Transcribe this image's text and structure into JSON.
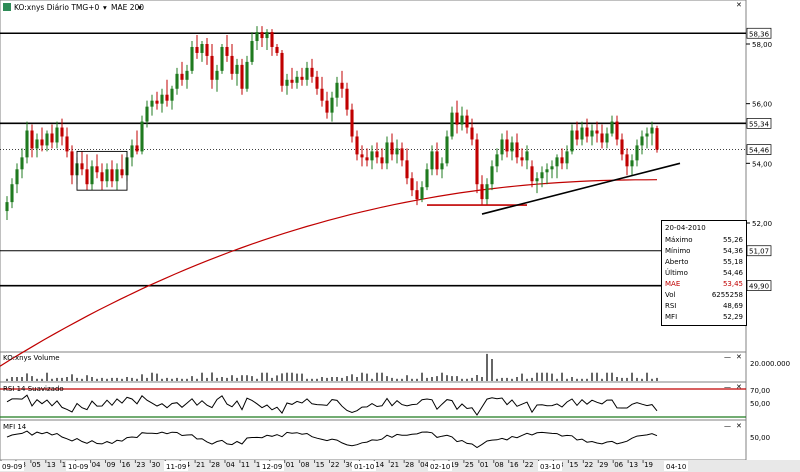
{
  "header": {
    "icon": "chart-icon",
    "symbol_label": "KO:xnys Diário TMG+0",
    "mae_label": "MAE 200",
    "mae_color": "#c00000"
  },
  "info_box": {
    "date": "20-04-2010",
    "rows": [
      {
        "key": "Máximo",
        "value": "55,26"
      },
      {
        "key": "Mínimo",
        "value": "54,36"
      },
      {
        "key": "Aberto",
        "value": "55,18"
      },
      {
        "key": "Último",
        "value": "54,46"
      },
      {
        "key": "MAE",
        "value": "53,45"
      },
      {
        "key": "Vol",
        "value": "6255258"
      },
      {
        "key": "RSI",
        "value": "48,69"
      },
      {
        "key": "MFI",
        "value": "52,29"
      }
    ]
  },
  "panels": {
    "volume_label": "KO:xnys Volume",
    "volume_tick": "20.000.000",
    "rsi_label": "RSI 14 Suavizado",
    "rsi_ticks": [
      "70,00",
      "50,00"
    ],
    "mfi_label": "MFI 14",
    "mfi_ticks": [
      "50,00"
    ]
  },
  "chart_data": {
    "type": "candlestick",
    "title": "KO:xnys Diário TMG+0",
    "ylim": [
      51.4,
      58.65
    ],
    "y_ticks": [
      "58,00",
      "56,00",
      "54,00",
      "52,00"
    ],
    "price_labels": [
      "58,36",
      "55,34",
      "54,46",
      "51,07",
      "49,90"
    ],
    "horizontal_levels": [
      58.36,
      55.34,
      51.07,
      49.9
    ],
    "last_price": 54.46,
    "x_labels": [
      "09-09",
      "10-09",
      "11-09",
      "12-09",
      "01-10",
      "02-10",
      "03-10",
      "04-10"
    ],
    "x_day_ticks": [
      "21",
      "28",
      "05",
      "13",
      "19",
      "27",
      "04",
      "09",
      "16",
      "23",
      "30",
      "07",
      "14",
      "21",
      "28",
      "04",
      "11",
      "18",
      "25",
      "01",
      "08",
      "15",
      "22",
      "30",
      "07",
      "14",
      "21",
      "28",
      "04",
      "11",
      "19",
      "25",
      "01",
      "08",
      "16",
      "22",
      "01",
      "08",
      "15",
      "22",
      "29",
      "06",
      "13",
      "19"
    ],
    "candles": [
      {
        "o": 52.4,
        "h": 52.9,
        "l": 52.1,
        "c": 52.7
      },
      {
        "o": 52.7,
        "h": 53.5,
        "l": 52.5,
        "c": 53.3
      },
      {
        "o": 53.3,
        "h": 54.0,
        "l": 53.0,
        "c": 53.8
      },
      {
        "o": 53.8,
        "h": 54.5,
        "l": 53.5,
        "c": 54.2
      },
      {
        "o": 54.2,
        "h": 55.4,
        "l": 54.0,
        "c": 55.1
      },
      {
        "o": 55.1,
        "h": 55.3,
        "l": 54.2,
        "c": 54.5
      },
      {
        "o": 54.5,
        "h": 55.0,
        "l": 54.2,
        "c": 54.8
      },
      {
        "o": 54.8,
        "h": 55.2,
        "l": 54.4,
        "c": 54.6
      },
      {
        "o": 54.6,
        "h": 55.1,
        "l": 54.4,
        "c": 55.0
      },
      {
        "o": 55.0,
        "h": 55.3,
        "l": 54.5,
        "c": 54.7
      },
      {
        "o": 54.7,
        "h": 55.4,
        "l": 54.5,
        "c": 55.2
      },
      {
        "o": 55.2,
        "h": 55.5,
        "l": 54.6,
        "c": 54.9
      },
      {
        "o": 54.9,
        "h": 55.2,
        "l": 54.2,
        "c": 54.4
      },
      {
        "o": 54.4,
        "h": 54.6,
        "l": 53.3,
        "c": 53.6
      },
      {
        "o": 53.6,
        "h": 54.2,
        "l": 53.3,
        "c": 54.0
      },
      {
        "o": 54.0,
        "h": 54.4,
        "l": 53.6,
        "c": 53.8
      },
      {
        "o": 53.8,
        "h": 54.3,
        "l": 53.1,
        "c": 53.3
      },
      {
        "o": 53.3,
        "h": 54.1,
        "l": 53.1,
        "c": 53.9
      },
      {
        "o": 53.9,
        "h": 54.3,
        "l": 53.5,
        "c": 53.7
      },
      {
        "o": 53.7,
        "h": 54.0,
        "l": 53.1,
        "c": 53.4
      },
      {
        "o": 53.4,
        "h": 54.0,
        "l": 53.2,
        "c": 53.8
      },
      {
        "o": 53.8,
        "h": 54.1,
        "l": 53.2,
        "c": 53.4
      },
      {
        "o": 53.4,
        "h": 54.0,
        "l": 53.1,
        "c": 53.8
      },
      {
        "o": 53.8,
        "h": 54.3,
        "l": 53.5,
        "c": 53.6
      },
      {
        "o": 53.6,
        "h": 54.4,
        "l": 53.4,
        "c": 54.2
      },
      {
        "o": 54.2,
        "h": 54.8,
        "l": 53.9,
        "c": 54.6
      },
      {
        "o": 54.6,
        "h": 55.1,
        "l": 54.3,
        "c": 54.4
      },
      {
        "o": 54.4,
        "h": 55.6,
        "l": 54.3,
        "c": 55.4
      },
      {
        "o": 55.4,
        "h": 56.1,
        "l": 55.2,
        "c": 55.9
      },
      {
        "o": 55.9,
        "h": 56.3,
        "l": 55.6,
        "c": 56.1
      },
      {
        "o": 56.1,
        "h": 56.4,
        "l": 55.8,
        "c": 56.0
      },
      {
        "o": 56.0,
        "h": 56.5,
        "l": 55.7,
        "c": 56.3
      },
      {
        "o": 56.3,
        "h": 56.8,
        "l": 55.9,
        "c": 56.1
      },
      {
        "o": 56.1,
        "h": 56.6,
        "l": 55.8,
        "c": 56.5
      },
      {
        "o": 56.5,
        "h": 57.2,
        "l": 56.3,
        "c": 57.0
      },
      {
        "o": 57.0,
        "h": 57.4,
        "l": 56.6,
        "c": 56.8
      },
      {
        "o": 56.8,
        "h": 57.3,
        "l": 56.5,
        "c": 57.1
      },
      {
        "o": 57.1,
        "h": 58.1,
        "l": 57.0,
        "c": 57.9
      },
      {
        "o": 57.9,
        "h": 58.3,
        "l": 57.5,
        "c": 57.7
      },
      {
        "o": 57.7,
        "h": 58.1,
        "l": 57.4,
        "c": 58.0
      },
      {
        "o": 58.0,
        "h": 58.2,
        "l": 57.3,
        "c": 57.6
      },
      {
        "o": 57.6,
        "h": 58.0,
        "l": 56.5,
        "c": 56.8
      },
      {
        "o": 56.8,
        "h": 57.3,
        "l": 56.4,
        "c": 57.1
      },
      {
        "o": 57.1,
        "h": 58.0,
        "l": 57.0,
        "c": 57.9
      },
      {
        "o": 57.9,
        "h": 58.3,
        "l": 57.4,
        "c": 57.6
      },
      {
        "o": 57.6,
        "h": 58.0,
        "l": 56.8,
        "c": 57.0
      },
      {
        "o": 57.0,
        "h": 57.5,
        "l": 56.6,
        "c": 57.3
      },
      {
        "o": 57.3,
        "h": 57.5,
        "l": 56.3,
        "c": 56.5
      },
      {
        "o": 56.5,
        "h": 57.6,
        "l": 56.4,
        "c": 57.4
      },
      {
        "o": 57.4,
        "h": 58.4,
        "l": 57.3,
        "c": 58.1
      },
      {
        "o": 58.1,
        "h": 58.6,
        "l": 57.8,
        "c": 58.4
      },
      {
        "o": 58.4,
        "h": 58.6,
        "l": 57.9,
        "c": 58.2
      },
      {
        "o": 58.2,
        "h": 58.5,
        "l": 57.8,
        "c": 58.4
      },
      {
        "o": 58.4,
        "h": 58.5,
        "l": 57.6,
        "c": 57.9
      },
      {
        "o": 57.9,
        "h": 58.0,
        "l": 57.6,
        "c": 57.7
      },
      {
        "o": 57.7,
        "h": 57.8,
        "l": 56.4,
        "c": 56.6
      },
      {
        "o": 56.6,
        "h": 57.0,
        "l": 56.3,
        "c": 56.8
      },
      {
        "o": 56.8,
        "h": 57.2,
        "l": 56.5,
        "c": 56.7
      },
      {
        "o": 56.7,
        "h": 57.1,
        "l": 56.5,
        "c": 56.9
      },
      {
        "o": 56.9,
        "h": 57.2,
        "l": 56.6,
        "c": 56.8
      },
      {
        "o": 56.8,
        "h": 57.4,
        "l": 56.6,
        "c": 57.2
      },
      {
        "o": 57.2,
        "h": 57.5,
        "l": 56.7,
        "c": 56.9
      },
      {
        "o": 56.9,
        "h": 57.1,
        "l": 56.3,
        "c": 56.5
      },
      {
        "o": 56.5,
        "h": 56.9,
        "l": 55.9,
        "c": 56.1
      },
      {
        "o": 56.1,
        "h": 56.4,
        "l": 55.5,
        "c": 55.7
      },
      {
        "o": 55.7,
        "h": 56.4,
        "l": 55.4,
        "c": 56.2
      },
      {
        "o": 56.2,
        "h": 56.9,
        "l": 55.9,
        "c": 56.7
      },
      {
        "o": 56.7,
        "h": 57.1,
        "l": 56.2,
        "c": 56.5
      },
      {
        "o": 56.5,
        "h": 56.7,
        "l": 55.6,
        "c": 55.8
      },
      {
        "o": 55.8,
        "h": 56.0,
        "l": 54.7,
        "c": 54.9
      },
      {
        "o": 54.9,
        "h": 55.1,
        "l": 54.1,
        "c": 54.3
      },
      {
        "o": 54.3,
        "h": 54.6,
        "l": 53.9,
        "c": 54.2
      },
      {
        "o": 54.2,
        "h": 54.5,
        "l": 53.9,
        "c": 54.1
      },
      {
        "o": 54.1,
        "h": 54.6,
        "l": 53.8,
        "c": 54.4
      },
      {
        "o": 54.4,
        "h": 54.7,
        "l": 54.0,
        "c": 54.2
      },
      {
        "o": 54.2,
        "h": 54.5,
        "l": 53.8,
        "c": 54.0
      },
      {
        "o": 54.0,
        "h": 54.9,
        "l": 53.8,
        "c": 54.7
      },
      {
        "o": 54.7,
        "h": 55.0,
        "l": 54.1,
        "c": 54.3
      },
      {
        "o": 54.3,
        "h": 54.8,
        "l": 54.0,
        "c": 54.5
      },
      {
        "o": 54.5,
        "h": 54.7,
        "l": 53.9,
        "c": 54.1
      },
      {
        "o": 54.1,
        "h": 54.5,
        "l": 53.3,
        "c": 53.5
      },
      {
        "o": 53.5,
        "h": 53.7,
        "l": 52.9,
        "c": 53.1
      },
      {
        "o": 53.1,
        "h": 53.4,
        "l": 52.6,
        "c": 52.8
      },
      {
        "o": 52.8,
        "h": 53.4,
        "l": 52.7,
        "c": 53.2
      },
      {
        "o": 53.2,
        "h": 54.0,
        "l": 53.1,
        "c": 53.8
      },
      {
        "o": 53.8,
        "h": 54.6,
        "l": 53.6,
        "c": 54.4
      },
      {
        "o": 54.4,
        "h": 54.7,
        "l": 53.6,
        "c": 53.8
      },
      {
        "o": 53.8,
        "h": 54.2,
        "l": 53.5,
        "c": 54.0
      },
      {
        "o": 54.0,
        "h": 55.1,
        "l": 53.9,
        "c": 54.9
      },
      {
        "o": 54.9,
        "h": 55.9,
        "l": 54.8,
        "c": 55.7
      },
      {
        "o": 55.7,
        "h": 56.1,
        "l": 55.0,
        "c": 55.3
      },
      {
        "o": 55.3,
        "h": 55.9,
        "l": 55.1,
        "c": 55.6
      },
      {
        "o": 55.6,
        "h": 55.8,
        "l": 55.0,
        "c": 55.2
      },
      {
        "o": 55.2,
        "h": 55.5,
        "l": 54.6,
        "c": 54.8
      },
      {
        "o": 54.8,
        "h": 55.0,
        "l": 53.0,
        "c": 53.3
      },
      {
        "o": 53.3,
        "h": 53.6,
        "l": 52.6,
        "c": 52.8
      },
      {
        "o": 52.8,
        "h": 53.5,
        "l": 52.6,
        "c": 53.3
      },
      {
        "o": 53.3,
        "h": 54.1,
        "l": 53.1,
        "c": 53.9
      },
      {
        "o": 53.9,
        "h": 54.5,
        "l": 53.7,
        "c": 54.3
      },
      {
        "o": 54.3,
        "h": 55.0,
        "l": 54.1,
        "c": 54.8
      },
      {
        "o": 54.8,
        "h": 55.1,
        "l": 54.2,
        "c": 54.4
      },
      {
        "o": 54.4,
        "h": 54.9,
        "l": 54.1,
        "c": 54.7
      },
      {
        "o": 54.7,
        "h": 55.0,
        "l": 54.0,
        "c": 54.2
      },
      {
        "o": 54.2,
        "h": 54.5,
        "l": 53.9,
        "c": 54.1
      },
      {
        "o": 54.1,
        "h": 54.6,
        "l": 53.8,
        "c": 54.4
      },
      {
        "o": 53.9,
        "h": 54.1,
        "l": 53.2,
        "c": 53.4
      },
      {
        "o": 53.4,
        "h": 53.7,
        "l": 53.0,
        "c": 53.5
      },
      {
        "o": 53.5,
        "h": 53.9,
        "l": 53.2,
        "c": 53.7
      },
      {
        "o": 53.7,
        "h": 54.0,
        "l": 53.3,
        "c": 53.8
      },
      {
        "o": 53.8,
        "h": 54.1,
        "l": 53.5,
        "c": 53.9
      },
      {
        "o": 53.9,
        "h": 54.3,
        "l": 53.5,
        "c": 54.2
      },
      {
        "o": 54.2,
        "h": 54.5,
        "l": 53.8,
        "c": 54.0
      },
      {
        "o": 54.0,
        "h": 54.6,
        "l": 53.8,
        "c": 54.4
      },
      {
        "o": 54.4,
        "h": 55.3,
        "l": 54.3,
        "c": 55.1
      },
      {
        "o": 55.1,
        "h": 55.4,
        "l": 54.6,
        "c": 54.8
      },
      {
        "o": 54.8,
        "h": 55.4,
        "l": 54.6,
        "c": 55.2
      },
      {
        "o": 55.2,
        "h": 55.5,
        "l": 54.7,
        "c": 54.9
      },
      {
        "o": 54.9,
        "h": 55.3,
        "l": 54.6,
        "c": 55.1
      },
      {
        "o": 55.1,
        "h": 55.4,
        "l": 54.7,
        "c": 55.0
      },
      {
        "o": 55.0,
        "h": 55.3,
        "l": 54.5,
        "c": 54.7
      },
      {
        "o": 54.7,
        "h": 55.2,
        "l": 54.5,
        "c": 55.0
      },
      {
        "o": 55.0,
        "h": 55.6,
        "l": 54.9,
        "c": 55.4
      },
      {
        "o": 55.4,
        "h": 55.6,
        "l": 54.6,
        "c": 54.8
      },
      {
        "o": 54.8,
        "h": 55.0,
        "l": 54.1,
        "c": 54.3
      },
      {
        "o": 54.3,
        "h": 54.5,
        "l": 53.6,
        "c": 53.9
      },
      {
        "o": 53.9,
        "h": 54.3,
        "l": 53.6,
        "c": 54.1
      },
      {
        "o": 54.1,
        "h": 54.8,
        "l": 53.9,
        "c": 54.6
      },
      {
        "o": 54.6,
        "h": 55.1,
        "l": 54.3,
        "c": 54.9
      },
      {
        "o": 54.9,
        "h": 55.2,
        "l": 54.5,
        "c": 55.0
      },
      {
        "o": 55.0,
        "h": 55.4,
        "l": 54.6,
        "c": 55.2
      },
      {
        "o": 55.18,
        "h": 55.26,
        "l": 54.36,
        "c": 54.46
      }
    ],
    "mae_200": [
      51.4,
      53.45
    ],
    "trendline": {
      "from": 52.3,
      "to": 54.0
    },
    "support_box": {
      "top": 54.4,
      "bottom": 53.1
    }
  }
}
